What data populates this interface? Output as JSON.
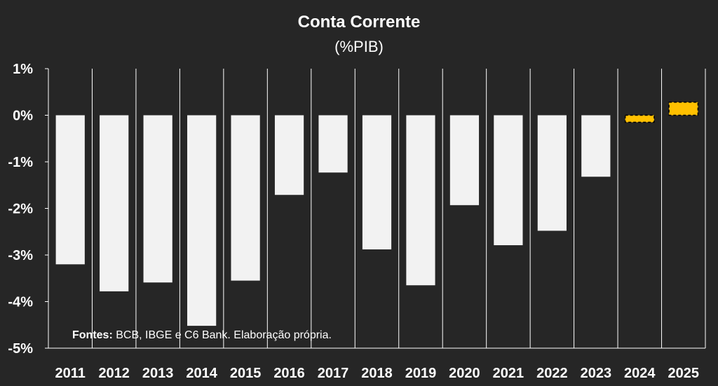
{
  "chart_data": {
    "type": "bar",
    "title": "Conta Corrente",
    "subtitle": "(%PIB)",
    "categories": [
      "2011",
      "2012",
      "2013",
      "2014",
      "2015",
      "2016",
      "2017",
      "2018",
      "2019",
      "2020",
      "2021",
      "2022",
      "2023",
      "2024",
      "2025"
    ],
    "values": [
      -3.2,
      -3.78,
      -3.59,
      -4.52,
      -3.55,
      -1.71,
      -1.23,
      -2.88,
      -3.65,
      -1.93,
      -2.79,
      -2.48,
      -1.32,
      -0.15,
      0.28
    ],
    "forecast_from_index": 13,
    "ylim": [
      -5,
      1
    ],
    "yticks": [
      1,
      0,
      -1,
      -2,
      -3,
      -4,
      -5
    ],
    "ytick_labels": [
      "1%",
      "0%",
      "-1%",
      "-2%",
      "-3%",
      "-4%",
      "-5%"
    ],
    "grid": "vertical",
    "colors": {
      "actual": "#f2f2f2",
      "forecast": "#ffc000",
      "background": "#262626",
      "grid": "#ffffff"
    }
  },
  "source": {
    "label": "Fontes:",
    "text": " BCB, IBGE e C6 Bank. Elaboração própria."
  }
}
